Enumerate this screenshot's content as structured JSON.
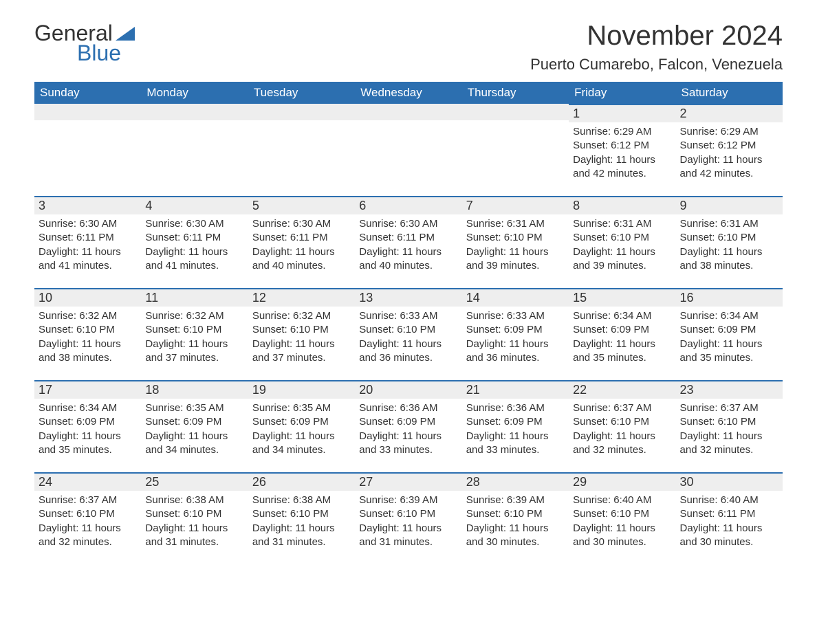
{
  "logo": {
    "text_general": "General",
    "text_blue": "Blue",
    "sail_color": "#2c6fb0"
  },
  "header": {
    "month_title": "November 2024",
    "location": "Puerto Cumarebo, Falcon, Venezuela"
  },
  "colors": {
    "header_bg": "#2c6fb0",
    "header_text": "#ffffff",
    "daynum_bg": "#eeeeee",
    "daynum_border": "#2c6fb0",
    "body_bg": "#ffffff",
    "text": "#333333"
  },
  "typography": {
    "title_fontsize": 40,
    "location_fontsize": 22,
    "th_fontsize": 17,
    "daynum_fontsize": 18,
    "cell_fontsize": 15
  },
  "days_of_week": [
    "Sunday",
    "Monday",
    "Tuesday",
    "Wednesday",
    "Thursday",
    "Friday",
    "Saturday"
  ],
  "weeks": [
    [
      null,
      null,
      null,
      null,
      null,
      {
        "n": "1",
        "sunrise": "Sunrise: 6:29 AM",
        "sunset": "Sunset: 6:12 PM",
        "daylight": "Daylight: 11 hours and 42 minutes."
      },
      {
        "n": "2",
        "sunrise": "Sunrise: 6:29 AM",
        "sunset": "Sunset: 6:12 PM",
        "daylight": "Daylight: 11 hours and 42 minutes."
      }
    ],
    [
      {
        "n": "3",
        "sunrise": "Sunrise: 6:30 AM",
        "sunset": "Sunset: 6:11 PM",
        "daylight": "Daylight: 11 hours and 41 minutes."
      },
      {
        "n": "4",
        "sunrise": "Sunrise: 6:30 AM",
        "sunset": "Sunset: 6:11 PM",
        "daylight": "Daylight: 11 hours and 41 minutes."
      },
      {
        "n": "5",
        "sunrise": "Sunrise: 6:30 AM",
        "sunset": "Sunset: 6:11 PM",
        "daylight": "Daylight: 11 hours and 40 minutes."
      },
      {
        "n": "6",
        "sunrise": "Sunrise: 6:30 AM",
        "sunset": "Sunset: 6:11 PM",
        "daylight": "Daylight: 11 hours and 40 minutes."
      },
      {
        "n": "7",
        "sunrise": "Sunrise: 6:31 AM",
        "sunset": "Sunset: 6:10 PM",
        "daylight": "Daylight: 11 hours and 39 minutes."
      },
      {
        "n": "8",
        "sunrise": "Sunrise: 6:31 AM",
        "sunset": "Sunset: 6:10 PM",
        "daylight": "Daylight: 11 hours and 39 minutes."
      },
      {
        "n": "9",
        "sunrise": "Sunrise: 6:31 AM",
        "sunset": "Sunset: 6:10 PM",
        "daylight": "Daylight: 11 hours and 38 minutes."
      }
    ],
    [
      {
        "n": "10",
        "sunrise": "Sunrise: 6:32 AM",
        "sunset": "Sunset: 6:10 PM",
        "daylight": "Daylight: 11 hours and 38 minutes."
      },
      {
        "n": "11",
        "sunrise": "Sunrise: 6:32 AM",
        "sunset": "Sunset: 6:10 PM",
        "daylight": "Daylight: 11 hours and 37 minutes."
      },
      {
        "n": "12",
        "sunrise": "Sunrise: 6:32 AM",
        "sunset": "Sunset: 6:10 PM",
        "daylight": "Daylight: 11 hours and 37 minutes."
      },
      {
        "n": "13",
        "sunrise": "Sunrise: 6:33 AM",
        "sunset": "Sunset: 6:10 PM",
        "daylight": "Daylight: 11 hours and 36 minutes."
      },
      {
        "n": "14",
        "sunrise": "Sunrise: 6:33 AM",
        "sunset": "Sunset: 6:09 PM",
        "daylight": "Daylight: 11 hours and 36 minutes."
      },
      {
        "n": "15",
        "sunrise": "Sunrise: 6:34 AM",
        "sunset": "Sunset: 6:09 PM",
        "daylight": "Daylight: 11 hours and 35 minutes."
      },
      {
        "n": "16",
        "sunrise": "Sunrise: 6:34 AM",
        "sunset": "Sunset: 6:09 PM",
        "daylight": "Daylight: 11 hours and 35 minutes."
      }
    ],
    [
      {
        "n": "17",
        "sunrise": "Sunrise: 6:34 AM",
        "sunset": "Sunset: 6:09 PM",
        "daylight": "Daylight: 11 hours and 35 minutes."
      },
      {
        "n": "18",
        "sunrise": "Sunrise: 6:35 AM",
        "sunset": "Sunset: 6:09 PM",
        "daylight": "Daylight: 11 hours and 34 minutes."
      },
      {
        "n": "19",
        "sunrise": "Sunrise: 6:35 AM",
        "sunset": "Sunset: 6:09 PM",
        "daylight": "Daylight: 11 hours and 34 minutes."
      },
      {
        "n": "20",
        "sunrise": "Sunrise: 6:36 AM",
        "sunset": "Sunset: 6:09 PM",
        "daylight": "Daylight: 11 hours and 33 minutes."
      },
      {
        "n": "21",
        "sunrise": "Sunrise: 6:36 AM",
        "sunset": "Sunset: 6:09 PM",
        "daylight": "Daylight: 11 hours and 33 minutes."
      },
      {
        "n": "22",
        "sunrise": "Sunrise: 6:37 AM",
        "sunset": "Sunset: 6:10 PM",
        "daylight": "Daylight: 11 hours and 32 minutes."
      },
      {
        "n": "23",
        "sunrise": "Sunrise: 6:37 AM",
        "sunset": "Sunset: 6:10 PM",
        "daylight": "Daylight: 11 hours and 32 minutes."
      }
    ],
    [
      {
        "n": "24",
        "sunrise": "Sunrise: 6:37 AM",
        "sunset": "Sunset: 6:10 PM",
        "daylight": "Daylight: 11 hours and 32 minutes."
      },
      {
        "n": "25",
        "sunrise": "Sunrise: 6:38 AM",
        "sunset": "Sunset: 6:10 PM",
        "daylight": "Daylight: 11 hours and 31 minutes."
      },
      {
        "n": "26",
        "sunrise": "Sunrise: 6:38 AM",
        "sunset": "Sunset: 6:10 PM",
        "daylight": "Daylight: 11 hours and 31 minutes."
      },
      {
        "n": "27",
        "sunrise": "Sunrise: 6:39 AM",
        "sunset": "Sunset: 6:10 PM",
        "daylight": "Daylight: 11 hours and 31 minutes."
      },
      {
        "n": "28",
        "sunrise": "Sunrise: 6:39 AM",
        "sunset": "Sunset: 6:10 PM",
        "daylight": "Daylight: 11 hours and 30 minutes."
      },
      {
        "n": "29",
        "sunrise": "Sunrise: 6:40 AM",
        "sunset": "Sunset: 6:10 PM",
        "daylight": "Daylight: 11 hours and 30 minutes."
      },
      {
        "n": "30",
        "sunrise": "Sunrise: 6:40 AM",
        "sunset": "Sunset: 6:11 PM",
        "daylight": "Daylight: 11 hours and 30 minutes."
      }
    ]
  ]
}
